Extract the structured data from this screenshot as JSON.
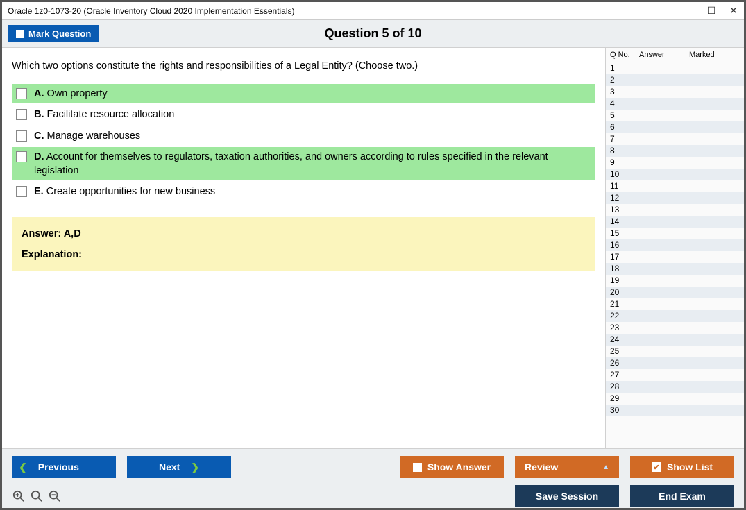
{
  "window": {
    "title": "Oracle 1z0-1073-20 (Oracle Inventory Cloud 2020 Implementation Essentials)"
  },
  "toolbar": {
    "mark_label": "Mark Question",
    "question_header": "Question 5 of 10"
  },
  "question": {
    "text": "Which two options constitute the rights and responsibilities of a Legal Entity? (Choose two.)",
    "options": [
      {
        "letter": "A.",
        "text": "Own property",
        "correct": true
      },
      {
        "letter": "B.",
        "text": "Facilitate resource allocation",
        "correct": false
      },
      {
        "letter": "C.",
        "text": "Manage warehouses",
        "correct": false
      },
      {
        "letter": "D.",
        "text": "Account for themselves to regulators, taxation authorities, and owners according to rules specified in the relevant legislation",
        "correct": true
      },
      {
        "letter": "E.",
        "text": "Create opportunities for new business",
        "correct": false
      }
    ],
    "answer_label": "Answer: A,D",
    "explanation_label": "Explanation:"
  },
  "sidepanel": {
    "col_qno": "Q No.",
    "col_answer": "Answer",
    "col_marked": "Marked",
    "row_count": 30
  },
  "footer": {
    "previous": "Previous",
    "next": "Next",
    "show_answer": "Show Answer",
    "review": "Review",
    "show_list": "Show List",
    "save_session": "Save Session",
    "end_exam": "End Exam"
  },
  "colors": {
    "blue": "#095bb2",
    "orange": "#d16a25",
    "dark": "#1c3a59",
    "correct_bg": "#9ee89e",
    "answer_bg": "#fbf5bd",
    "alt_row": "#e8edf2"
  }
}
